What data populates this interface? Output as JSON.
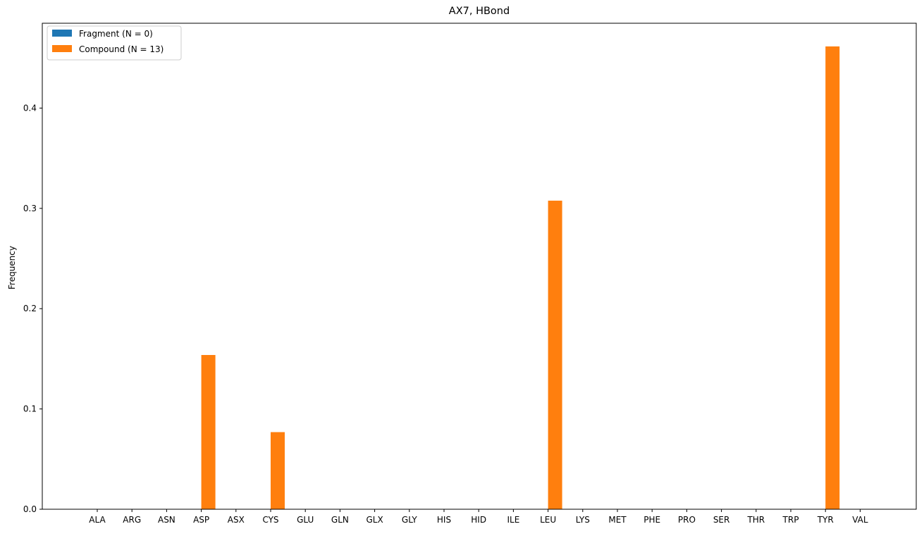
{
  "chart_data": {
    "type": "bar",
    "title": "AX7, HBond",
    "xlabel": "",
    "ylabel": "Frequency",
    "ylim": [
      0,
      0.4846
    ],
    "yticks": [
      0.0,
      0.1,
      0.2,
      0.3,
      0.4
    ],
    "ytick_labels": [
      "0.0",
      "0.1",
      "0.2",
      "0.3",
      "0.4"
    ],
    "grid": false,
    "legend_position": "top-left",
    "categories": [
      "ALA",
      "ARG",
      "ASN",
      "ASP",
      "ASX",
      "CYS",
      "GLU",
      "GLN",
      "GLX",
      "GLY",
      "HIS",
      "HID",
      "ILE",
      "LEU",
      "LYS",
      "MET",
      "PHE",
      "PRO",
      "SER",
      "THR",
      "TRP",
      "TYR",
      "VAL"
    ],
    "series": [
      {
        "name": "Fragment (N = 0)",
        "color": "#1f77b4",
        "values": [
          0,
          0,
          0,
          0,
          0,
          0,
          0,
          0,
          0,
          0,
          0,
          0,
          0,
          0,
          0,
          0,
          0,
          0,
          0,
          0,
          0,
          0,
          0
        ]
      },
      {
        "name": "Compound (N = 13)",
        "color": "#ff7f0e",
        "values": [
          0,
          0,
          0,
          0.1538,
          0,
          0.0769,
          0,
          0,
          0,
          0,
          0,
          0,
          0,
          0.3077,
          0,
          0,
          0,
          0,
          0,
          0,
          0,
          0.4615,
          0
        ]
      }
    ]
  }
}
